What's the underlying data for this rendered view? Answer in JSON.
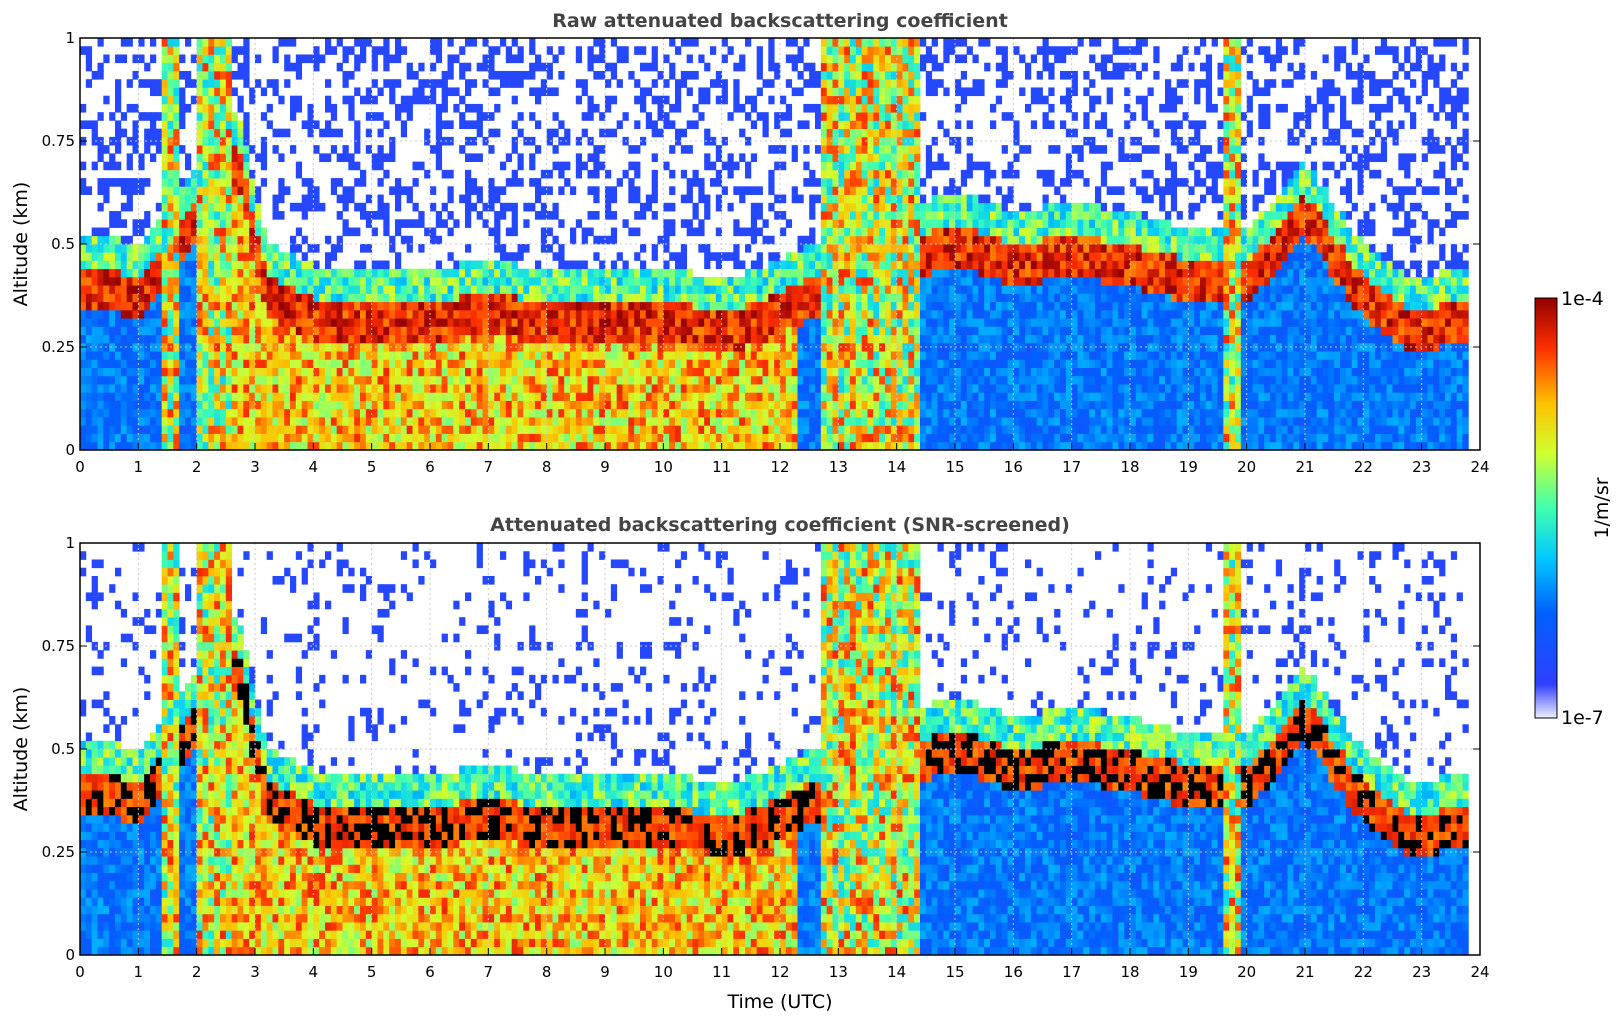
{
  "chart_data": {
    "type": "heatmap",
    "panels": [
      {
        "title": "Raw attenuated backscattering coefficient",
        "ylabel": "Altitude (km)",
        "xlabel": "",
        "xlim": [
          0,
          24
        ],
        "ylim": [
          0,
          1
        ],
        "xticks": [
          "0",
          "1",
          "2",
          "3",
          "4",
          "5",
          "6",
          "7",
          "8",
          "9",
          "10",
          "11",
          "12",
          "13",
          "14",
          "15",
          "16",
          "17",
          "18",
          "19",
          "20",
          "21",
          "22",
          "23",
          "24"
        ],
        "yticks": [
          "0",
          "0.25",
          "0.5",
          "0.75",
          "1"
        ],
        "grid": true,
        "screened": false
      },
      {
        "title": "Attenuated backscattering coefficient (SNR-screened)",
        "ylabel": "Altitude (km)",
        "xlabel": "Time (UTC)",
        "xlim": [
          0,
          24
        ],
        "ylim": [
          0,
          1
        ],
        "xticks": [
          "0",
          "1",
          "2",
          "3",
          "4",
          "5",
          "6",
          "7",
          "8",
          "9",
          "10",
          "11",
          "12",
          "13",
          "14",
          "15",
          "16",
          "17",
          "18",
          "19",
          "20",
          "21",
          "22",
          "23",
          "24"
        ],
        "yticks": [
          "0",
          "0.25",
          "0.5",
          "0.75",
          "1"
        ],
        "grid": true,
        "screened": true
      }
    ],
    "colorbar": {
      "label": "1/m/sr",
      "min_label": "1e-7",
      "max_label": "1e-4",
      "scale": "log",
      "colormap": "jet"
    },
    "layer_top_km": [
      [
        0.0,
        0.45
      ],
      [
        1.0,
        0.42
      ],
      [
        2.0,
        0.6
      ],
      [
        2.7,
        0.75
      ],
      [
        3.2,
        0.42
      ],
      [
        4.0,
        0.37
      ],
      [
        5.0,
        0.36
      ],
      [
        6.0,
        0.36
      ],
      [
        7.0,
        0.38
      ],
      [
        8.0,
        0.36
      ],
      [
        9.0,
        0.36
      ],
      [
        10.0,
        0.37
      ],
      [
        11.0,
        0.33
      ],
      [
        12.0,
        0.38
      ],
      [
        13.0,
        0.45
      ],
      [
        14.0,
        0.5
      ],
      [
        15.0,
        0.55
      ],
      [
        16.0,
        0.5
      ],
      [
        17.0,
        0.52
      ],
      [
        18.0,
        0.5
      ],
      [
        19.0,
        0.46
      ],
      [
        20.0,
        0.45
      ],
      [
        21.0,
        0.62
      ],
      [
        21.5,
        0.52
      ],
      [
        22.0,
        0.42
      ],
      [
        22.8,
        0.34
      ],
      [
        23.8,
        0.36
      ]
    ],
    "data_end_hour": 23.8
  }
}
